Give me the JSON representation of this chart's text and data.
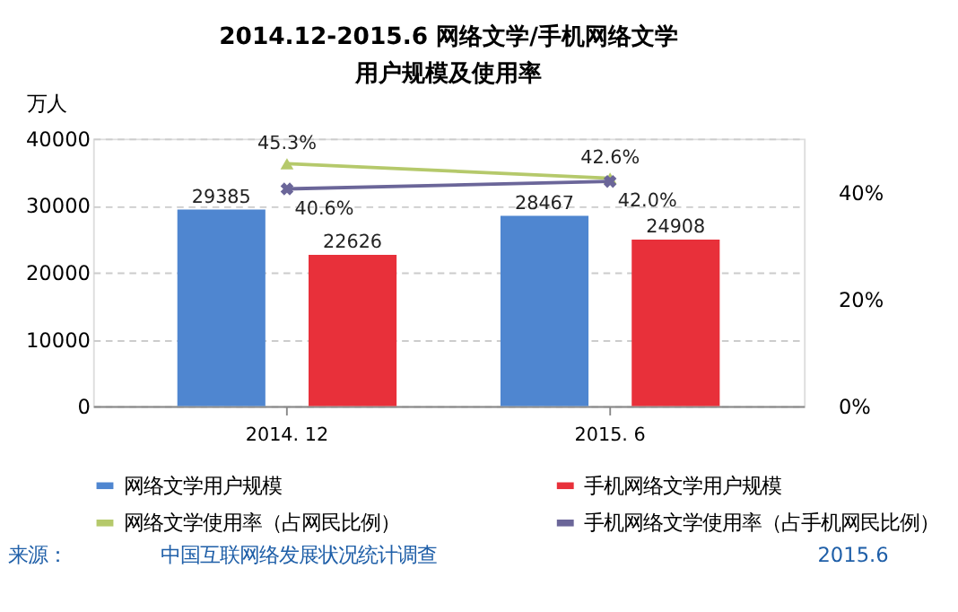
{
  "chart_data": {
    "type": "bar",
    "title": "2014.12-2015.6 网络文学/手机网络文学",
    "subtitle": "用户规模及使用率",
    "ylabel": "万人",
    "categories": [
      "2014. 12",
      "2015. 6"
    ],
    "series": [
      {
        "name": "网络文学用户规模",
        "color": "#4f86d0",
        "values": [
          29385,
          28467
        ]
      },
      {
        "name": "手机网络文学用户规模",
        "color": "#e8303a",
        "values": [
          22626,
          24908
        ]
      },
      {
        "name": "网络文学使用率（占网民比例）",
        "type": "line",
        "axis": "y2",
        "marker": "triangle",
        "color": "#b5c96b",
        "values": [
          45.3,
          42.6
        ],
        "value_labels": [
          "45.3%",
          "42.6%"
        ]
      },
      {
        "name": "手机网络文学使用率（占手机网民比例）",
        "type": "line",
        "axis": "y2",
        "marker": "cross",
        "color": "#6b6699",
        "values": [
          40.6,
          42.0
        ],
        "value_labels": [
          "40.6%",
          "42.0%"
        ]
      }
    ],
    "data_labels": true,
    "ylim": [
      0,
      40000
    ],
    "yticks": [
      0,
      10000,
      20000,
      30000,
      40000
    ],
    "y2lim": [
      0,
      50
    ],
    "y2ticks": [
      {
        "value": 0,
        "label": "0%"
      },
      {
        "value": 20,
        "label": "20%"
      },
      {
        "value": 40,
        "label": "40%"
      }
    ],
    "grid": "y",
    "legend": "bottom",
    "annotations": [
      "来源：",
      "中国互联网络发展状况统计调查",
      "2015.6"
    ]
  }
}
